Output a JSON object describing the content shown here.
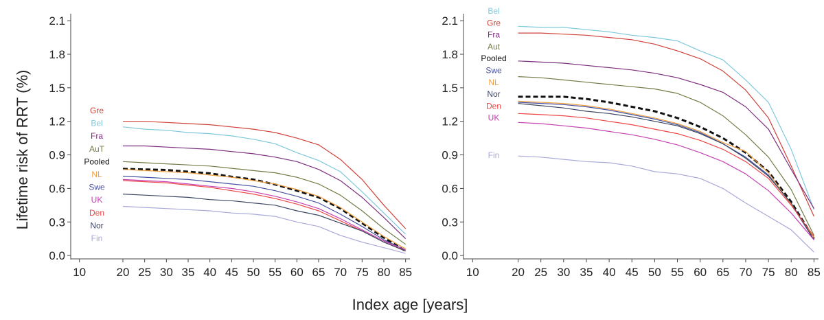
{
  "ylabel": "Lifetime risk of RRT (%)",
  "xlabel": "Index age [years]",
  "chart_data": [
    {
      "type": "line",
      "panel": "left",
      "x": [
        20,
        25,
        30,
        35,
        40,
        45,
        50,
        55,
        60,
        65,
        70,
        75,
        80,
        85
      ],
      "xticks": [
        10,
        20,
        25,
        30,
        35,
        40,
        45,
        50,
        55,
        60,
        65,
        70,
        75,
        80,
        85
      ],
      "yticks": [
        0.0,
        0.3,
        0.6,
        0.9,
        1.2,
        1.5,
        1.8,
        2.1
      ],
      "xlim": [
        8,
        86
      ],
      "ylim": [
        -0.03,
        2.15
      ],
      "grid": false,
      "legend": "inline-left",
      "series": [
        {
          "name": "Gre",
          "color": "#cf4038",
          "values": [
            1.2,
            1.2,
            1.19,
            1.18,
            1.17,
            1.15,
            1.13,
            1.1,
            1.05,
            0.99,
            0.86,
            0.68,
            0.45,
            0.24
          ]
        },
        {
          "name": "Bel",
          "color": "#7ec8dc",
          "values": [
            1.15,
            1.13,
            1.12,
            1.1,
            1.09,
            1.07,
            1.04,
            1.0,
            0.92,
            0.85,
            0.75,
            0.57,
            0.38,
            0.19
          ]
        },
        {
          "name": "Fra",
          "color": "#7b2d7e",
          "values": [
            0.98,
            0.98,
            0.97,
            0.96,
            0.95,
            0.93,
            0.91,
            0.88,
            0.84,
            0.77,
            0.67,
            0.52,
            0.34,
            0.15
          ]
        },
        {
          "name": "AuT",
          "color": "#6f7d45",
          "values": [
            0.84,
            0.83,
            0.82,
            0.81,
            0.8,
            0.78,
            0.76,
            0.74,
            0.7,
            0.64,
            0.54,
            0.4,
            0.24,
            0.1
          ]
        },
        {
          "name": "Pooled",
          "color": "#111111",
          "dashed": true,
          "values": [
            0.775,
            0.77,
            0.765,
            0.75,
            0.735,
            0.705,
            0.68,
            0.635,
            0.58,
            0.52,
            0.42,
            0.29,
            0.16,
            0.04
          ]
        },
        {
          "name": "NL",
          "color": "#f0a040",
          "values": [
            0.77,
            0.76,
            0.75,
            0.74,
            0.72,
            0.7,
            0.67,
            0.64,
            0.59,
            0.53,
            0.43,
            0.3,
            0.17,
            0.06
          ]
        },
        {
          "name": "Swe",
          "color": "#4650a0",
          "values": [
            0.71,
            0.7,
            0.69,
            0.68,
            0.66,
            0.64,
            0.62,
            0.58,
            0.53,
            0.47,
            0.37,
            0.26,
            0.14,
            0.05
          ]
        },
        {
          "name": "UK",
          "color": "#c540b0",
          "values": [
            0.68,
            0.67,
            0.66,
            0.64,
            0.62,
            0.6,
            0.57,
            0.53,
            0.48,
            0.42,
            0.33,
            0.23,
            0.13,
            0.05
          ]
        },
        {
          "name": "Den",
          "color": "#ee4444",
          "values": [
            0.67,
            0.66,
            0.65,
            0.63,
            0.61,
            0.58,
            0.55,
            0.51,
            0.46,
            0.4,
            0.31,
            0.22,
            0.12,
            0.04
          ]
        },
        {
          "name": "Nor",
          "color": "#3a4560",
          "values": [
            0.55,
            0.54,
            0.53,
            0.52,
            0.5,
            0.49,
            0.47,
            0.45,
            0.4,
            0.36,
            0.29,
            0.22,
            0.12,
            0.04
          ]
        },
        {
          "name": "Fin",
          "color": "#a8a8d8",
          "values": [
            0.44,
            0.43,
            0.42,
            0.41,
            0.4,
            0.38,
            0.37,
            0.35,
            0.3,
            0.26,
            0.18,
            0.12,
            0.07,
            0.02
          ]
        }
      ]
    },
    {
      "type": "line",
      "panel": "right",
      "x": [
        20,
        25,
        30,
        35,
        40,
        45,
        50,
        55,
        60,
        65,
        70,
        75,
        80,
        85
      ],
      "xticks": [
        10,
        20,
        25,
        30,
        35,
        40,
        45,
        50,
        55,
        60,
        65,
        70,
        75,
        80,
        85
      ],
      "yticks": [
        0.0,
        0.3,
        0.6,
        0.9,
        1.2,
        1.5,
        1.8,
        2.1
      ],
      "xlim": [
        8,
        86
      ],
      "ylim": [
        -0.03,
        2.15
      ],
      "grid": false,
      "legend": "inline-left",
      "series": [
        {
          "name": "Bel",
          "color": "#7ec8dc",
          "values": [
            2.05,
            2.04,
            2.04,
            2.02,
            2.0,
            1.97,
            1.95,
            1.92,
            1.83,
            1.75,
            1.57,
            1.37,
            0.95,
            0.41
          ]
        },
        {
          "name": "Gre",
          "color": "#cf4038",
          "values": [
            1.99,
            1.99,
            1.98,
            1.97,
            1.95,
            1.93,
            1.89,
            1.83,
            1.76,
            1.65,
            1.48,
            1.23,
            0.8,
            0.35
          ]
        },
        {
          "name": "Fra",
          "color": "#7b2d7e",
          "values": [
            1.74,
            1.73,
            1.72,
            1.7,
            1.68,
            1.66,
            1.63,
            1.59,
            1.53,
            1.46,
            1.33,
            1.13,
            0.77,
            0.42
          ]
        },
        {
          "name": "Aut",
          "color": "#6f7d45",
          "values": [
            1.6,
            1.59,
            1.57,
            1.55,
            1.53,
            1.51,
            1.49,
            1.45,
            1.37,
            1.25,
            1.08,
            0.88,
            0.59,
            0.18
          ]
        },
        {
          "name": "Pooled",
          "color": "#111111",
          "dashed": true,
          "values": [
            1.42,
            1.42,
            1.42,
            1.4,
            1.37,
            1.33,
            1.29,
            1.23,
            1.15,
            1.05,
            0.92,
            0.75,
            0.48,
            0.15
          ]
        },
        {
          "name": "Swe",
          "color": "#4650a0",
          "values": [
            1.37,
            1.36,
            1.35,
            1.33,
            1.3,
            1.26,
            1.22,
            1.17,
            1.1,
            1.0,
            0.88,
            0.72,
            0.46,
            0.14
          ]
        },
        {
          "name": "NL",
          "color": "#f0a040",
          "values": [
            1.38,
            1.37,
            1.36,
            1.34,
            1.31,
            1.27,
            1.23,
            1.18,
            1.11,
            1.01,
            0.93,
            0.74,
            0.46,
            0.16
          ]
        },
        {
          "name": "Nor",
          "color": "#3a4560",
          "values": [
            1.36,
            1.34,
            1.32,
            1.29,
            1.27,
            1.24,
            1.2,
            1.16,
            1.09,
            1.0,
            0.87,
            0.71,
            0.47,
            0.14
          ]
        },
        {
          "name": "Den",
          "color": "#ee4444",
          "values": [
            1.27,
            1.26,
            1.25,
            1.23,
            1.2,
            1.17,
            1.13,
            1.09,
            1.03,
            0.95,
            0.84,
            0.69,
            0.45,
            0.17
          ]
        },
        {
          "name": "UK",
          "color": "#c540b0",
          "values": [
            1.19,
            1.18,
            1.16,
            1.14,
            1.11,
            1.08,
            1.04,
            0.99,
            0.92,
            0.84,
            0.73,
            0.58,
            0.38,
            0.14
          ]
        },
        {
          "name": "Fin",
          "color": "#a8a8d8",
          "values": [
            0.89,
            0.88,
            0.86,
            0.84,
            0.83,
            0.8,
            0.75,
            0.73,
            0.69,
            0.6,
            0.47,
            0.35,
            0.23,
            0.03
          ]
        }
      ]
    }
  ]
}
